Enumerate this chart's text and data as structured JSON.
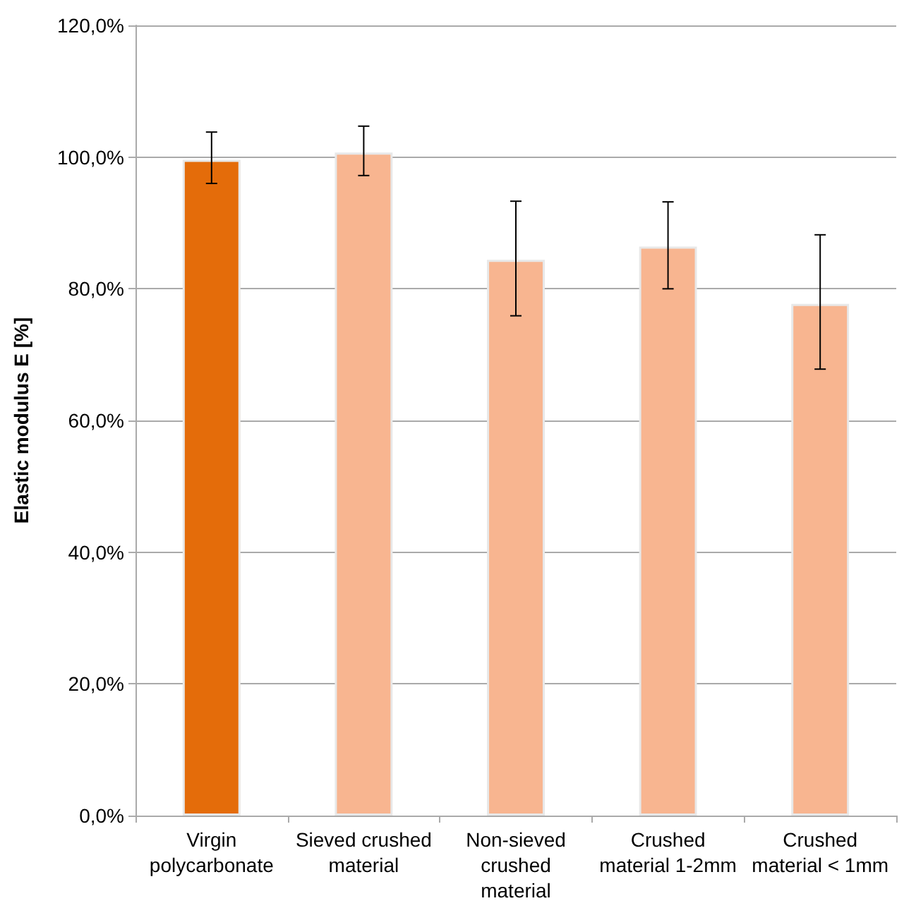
{
  "chart_data": {
    "type": "bar",
    "ylabel": "Elastic modulus E [%]",
    "categories": [
      "Virgin polycarbonate",
      "Sieved crushed material",
      "Non-sieved crushed material",
      "Crushed material 1-2mm",
      "Crushed material < 1mm"
    ],
    "values": [
      99.6,
      100.7,
      84.4,
      86.4,
      77.7
    ],
    "colors": [
      "#e46c0a",
      "#f8b590",
      "#f8b590",
      "#f8b590",
      "#f8b590"
    ],
    "errors": [
      [
        96.0,
        103.8
      ],
      [
        97.2,
        104.7
      ],
      [
        75.9,
        93.3
      ],
      [
        80.0,
        93.2
      ],
      [
        67.8,
        88.2
      ]
    ],
    "ylim": [
      0,
      120
    ],
    "yticks": [
      {
        "value": 0,
        "label": "0,0%"
      },
      {
        "value": 20,
        "label": "20,0%"
      },
      {
        "value": 40,
        "label": "40,0%"
      },
      {
        "value": 60,
        "label": "60,0%"
      },
      {
        "value": 80,
        "label": "80,0%"
      },
      {
        "value": 100,
        "label": "100,0%"
      },
      {
        "value": 120,
        "label": "120,0%"
      }
    ],
    "grid": "y"
  }
}
